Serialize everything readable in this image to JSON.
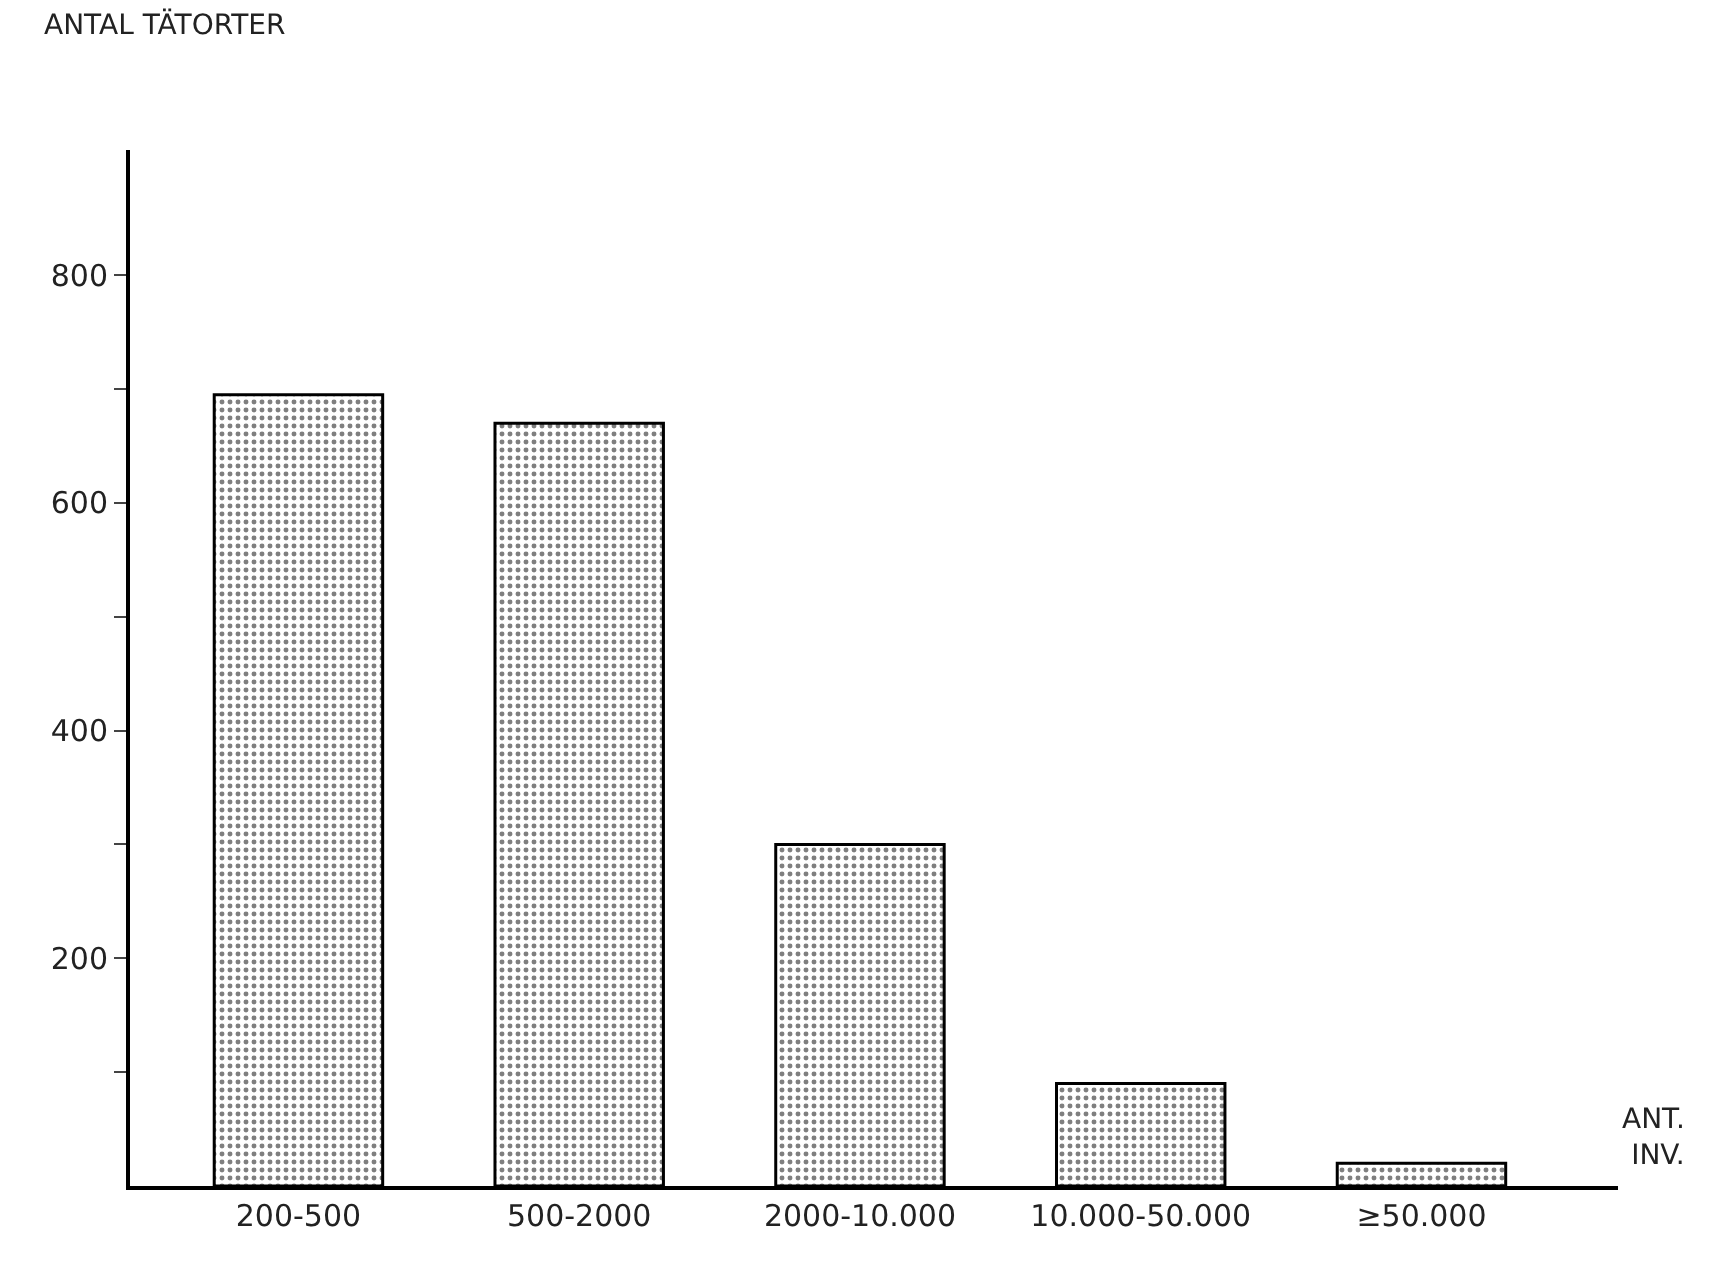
{
  "chart_data": {
    "type": "bar",
    "xlabel": "ANT.\nINV.",
    "ylabel": "ANTAL TÄTORTER",
    "categories": [
      "200-500",
      "500-2000",
      "2000-10.000",
      "10.000-50.000",
      "≥50.000"
    ],
    "values": [
      695,
      670,
      300,
      90,
      20
    ],
    "color": "#000000",
    "ylim": [
      0,
      910
    ],
    "yticks": [
      {
        "value": 100,
        "label": null
      },
      200,
      {
        "value": 300,
        "label": null
      },
      400,
      {
        "value": 500,
        "label": null
      },
      600,
      {
        "value": 700,
        "label": null
      },
      800
    ]
  }
}
